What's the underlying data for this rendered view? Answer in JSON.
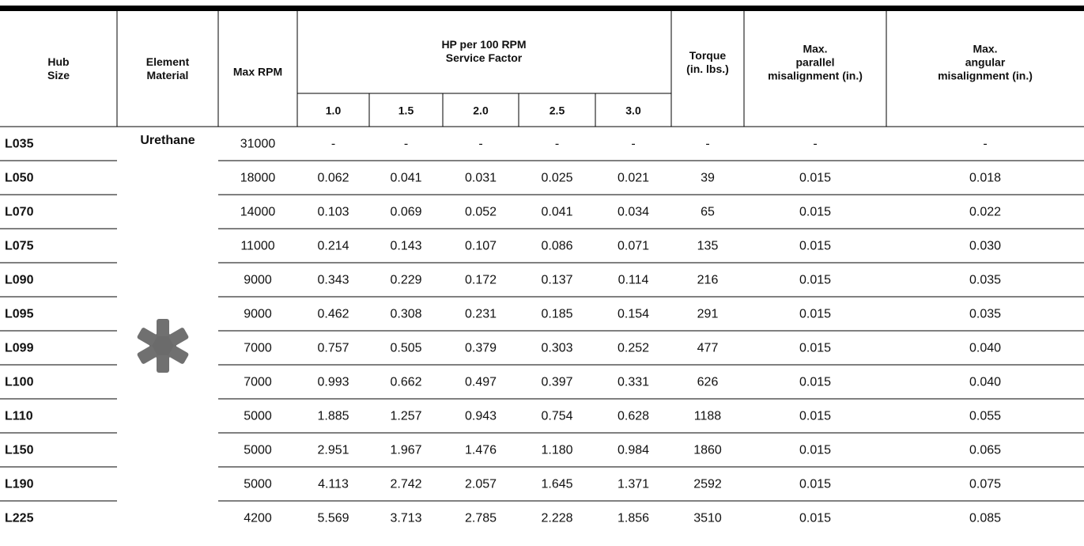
{
  "table": {
    "headers": {
      "hub": [
        "Hub",
        "Size"
      ],
      "element": [
        "Element",
        "Material"
      ],
      "max_rpm": [
        "Max RPM"
      ],
      "hp": [
        "HP per 100 RPM",
        "Service Factor"
      ],
      "factors": [
        "1.0",
        "1.5",
        "2.0",
        "2.5",
        "3.0"
      ],
      "torque": [
        "Torque",
        "(in. lbs.)"
      ],
      "parallel": [
        "Max.",
        "parallel",
        "misalignment (in.)"
      ],
      "angular": [
        "Max.",
        "angular",
        "misalignment (in.)"
      ]
    },
    "element_material": "Urethane",
    "rows": [
      [
        "L035",
        "31000",
        "-",
        "-",
        "-",
        "-",
        "-",
        "-",
        "-",
        "-"
      ],
      [
        "L050",
        "18000",
        "0.062",
        "0.041",
        "0.031",
        "0.025",
        "0.021",
        "39",
        "0.015",
        "0.018"
      ],
      [
        "L070",
        "14000",
        "0.103",
        "0.069",
        "0.052",
        "0.041",
        "0.034",
        "65",
        "0.015",
        "0.022"
      ],
      [
        "L075",
        "11000",
        "0.214",
        "0.143",
        "0.107",
        "0.086",
        "0.071",
        "135",
        "0.015",
        "0.030"
      ],
      [
        "L090",
        "9000",
        "0.343",
        "0.229",
        "0.172",
        "0.137",
        "0.114",
        "216",
        "0.015",
        "0.035"
      ],
      [
        "L095",
        "9000",
        "0.462",
        "0.308",
        "0.231",
        "0.185",
        "0.154",
        "291",
        "0.015",
        "0.035"
      ],
      [
        "L099",
        "7000",
        "0.757",
        "0.505",
        "0.379",
        "0.303",
        "0.252",
        "477",
        "0.015",
        "0.040"
      ],
      [
        "L100",
        "7000",
        "0.993",
        "0.662",
        "0.497",
        "0.397",
        "0.331",
        "626",
        "0.015",
        "0.040"
      ],
      [
        "L110",
        "5000",
        "1.885",
        "1.257",
        "0.943",
        "0.754",
        "0.628",
        "1188",
        "0.015",
        "0.055"
      ],
      [
        "L150",
        "5000",
        "2.951",
        "1.967",
        "1.476",
        "1.180",
        "0.984",
        "1860",
        "0.015",
        "0.065"
      ],
      [
        "L190",
        "5000",
        "4.113",
        "2.742",
        "2.057",
        "1.645",
        "1.371",
        "2592",
        "0.015",
        "0.075"
      ],
      [
        "L225",
        "4200",
        "5.569",
        "3.713",
        "2.785",
        "2.228",
        "1.856",
        "3510",
        "0.015",
        "0.085"
      ]
    ]
  }
}
